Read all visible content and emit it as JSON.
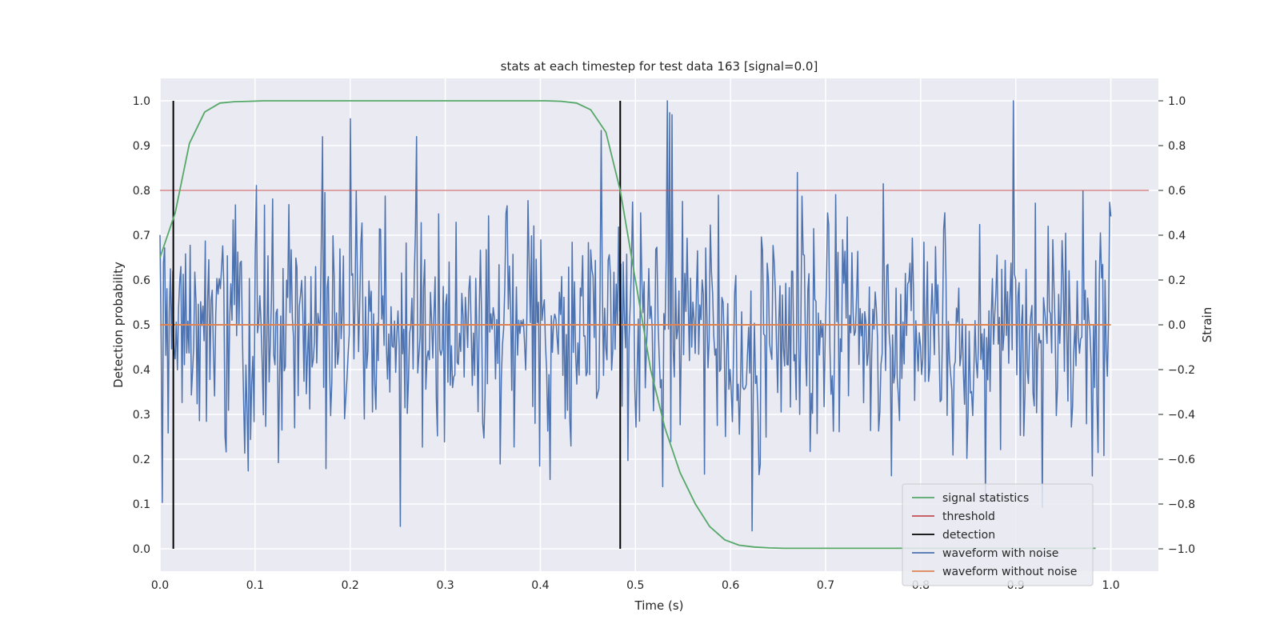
{
  "chart_data": {
    "type": "line",
    "title": "stats at each timestep for test data 163 [signal=0.0]",
    "xlabel": "Time (s)",
    "ylabel_left": "Detection probability",
    "ylabel_right": "Strain",
    "xlim": [
      0.0,
      1.05
    ],
    "ylim_left": [
      -0.05,
      1.05
    ],
    "ylim_right": [
      -1.1,
      1.1
    ],
    "x_ticks": [
      "0.0",
      "0.1",
      "0.2",
      "0.3",
      "0.4",
      "0.5",
      "0.6",
      "0.7",
      "0.8",
      "0.9",
      "1.0"
    ],
    "y_left_ticks": [
      "0.0",
      "0.1",
      "0.2",
      "0.3",
      "0.4",
      "0.5",
      "0.6",
      "0.7",
      "0.8",
      "0.9",
      "1.0"
    ],
    "y_right_ticks": [
      "−1.0",
      "−0.8",
      "−0.6",
      "−0.4",
      "−0.2",
      "0.0",
      "0.2",
      "0.4",
      "0.6",
      "0.8",
      "1.0"
    ],
    "grid": true,
    "legend_position": "lower-right",
    "colors": {
      "signal_statistics": "#55a868",
      "threshold": "#c44e52",
      "detection": "#000000",
      "waveform_with_noise": "#4c72b0",
      "waveform_without_noise": "#dd8452",
      "plot_background": "#eaeaf2"
    },
    "series": [
      {
        "name": "signal statistics",
        "axis": "left",
        "x": [
          0.0,
          0.016,
          0.031,
          0.047,
          0.063,
          0.078,
          0.094,
          0.109,
          0.125,
          0.141,
          0.156,
          0.172,
          0.188,
          0.203,
          0.219,
          0.234,
          0.25,
          0.266,
          0.281,
          0.297,
          0.313,
          0.328,
          0.344,
          0.359,
          0.375,
          0.391,
          0.406,
          0.422,
          0.438,
          0.453,
          0.469,
          0.484,
          0.5,
          0.516,
          0.531,
          0.547,
          0.563,
          0.578,
          0.594,
          0.609,
          0.625,
          0.641,
          0.656,
          0.672,
          0.688,
          0.703,
          0.719,
          0.734,
          0.75,
          0.766,
          0.781,
          0.797,
          0.813,
          0.828,
          0.844,
          0.859,
          0.875,
          0.891,
          0.906,
          0.922,
          0.938,
          0.953,
          0.969,
          0.984
        ],
        "y": [
          0.65,
          0.75,
          0.905,
          0.975,
          0.995,
          0.998,
          0.999,
          1.0,
          1.0,
          1.0,
          1.0,
          1.0,
          1.0,
          1.0,
          1.0,
          1.0,
          1.0,
          1.0,
          1.0,
          1.0,
          1.0,
          1.0,
          1.0,
          1.0,
          1.0,
          1.0,
          1.0,
          0.999,
          0.995,
          0.98,
          0.93,
          0.8,
          0.6,
          0.4,
          0.27,
          0.17,
          0.1,
          0.05,
          0.02,
          0.008,
          0.004,
          0.002,
          0.001,
          0.001,
          0.001,
          0.001,
          0.001,
          0.001,
          0.001,
          0.001,
          0.001,
          0.001,
          0.001,
          0.001,
          0.001,
          0.001,
          0.001,
          0.001,
          0.001,
          0.001,
          0.001,
          0.001,
          0.001,
          0.001
        ]
      },
      {
        "name": "threshold",
        "axis": "left",
        "x": [
          0.0,
          1.04
        ],
        "y": [
          0.8,
          0.8
        ]
      },
      {
        "name": "detection",
        "axis": "left",
        "segments": [
          {
            "x": 0.014,
            "y": [
              0.0,
              1.0
            ]
          },
          {
            "x": 0.484,
            "y": [
              0.0,
              1.0
            ]
          }
        ]
      },
      {
        "name": "waveform with noise",
        "axis": "right",
        "x_range": [
          0.0,
          1.0
        ],
        "n_points": 820,
        "seed": 163,
        "std": 0.28,
        "clip": [
          -0.97,
          1.0
        ],
        "peaks": [
          [
            0.534,
            1.0
          ],
          [
            0.898,
            1.0
          ],
          [
            0.253,
            -0.9
          ],
          [
            0.2,
            0.92
          ],
          [
            0.27,
            0.84
          ],
          [
            0.623,
            -0.92
          ]
        ]
      },
      {
        "name": "waveform without noise",
        "axis": "right",
        "x": [
          0.0,
          1.0
        ],
        "y": [
          0.0,
          0.0
        ]
      }
    ]
  }
}
